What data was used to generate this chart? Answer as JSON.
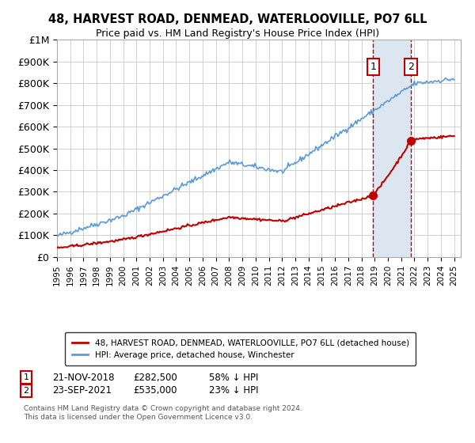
{
  "title": "48, HARVEST ROAD, DENMEAD, WATERLOOVILLE, PO7 6LL",
  "subtitle": "Price paid vs. HM Land Registry's House Price Index (HPI)",
  "footnote": "Contains HM Land Registry data © Crown copyright and database right 2024.\nThis data is licensed under the Open Government Licence v3.0.",
  "ylabel": "",
  "xlabel": "",
  "ylim": [
    0,
    1000000
  ],
  "yticks": [
    0,
    100000,
    200000,
    300000,
    400000,
    500000,
    600000,
    700000,
    800000,
    900000,
    1000000
  ],
  "ytick_labels": [
    "£0",
    "£100K",
    "£200K",
    "£300K",
    "£400K",
    "£500K",
    "£600K",
    "£700K",
    "£800K",
    "£900K",
    "£1M"
  ],
  "hpi_color": "#5b9bd5",
  "price_color": "#c00000",
  "marker_color": "#c00000",
  "shade_color": "#dce6f1",
  "grid_color": "#d0d0d0",
  "bg_color": "#ffffff",
  "sale1_date": "21-NOV-2018",
  "sale1_year": 2018.89,
  "sale1_price": 282500,
  "sale1_label": "58% ↓ HPI",
  "sale2_date": "23-SEP-2021",
  "sale2_year": 2021.73,
  "sale2_price": 535000,
  "sale2_label": "23% ↓ HPI",
  "legend_line1": "48, HARVEST ROAD, DENMEAD, WATERLOOVILLE, PO7 6LL (detached house)",
  "legend_line2": "HPI: Average price, detached house, Winchester",
  "xstart": 1995.0,
  "xend": 2025.5
}
